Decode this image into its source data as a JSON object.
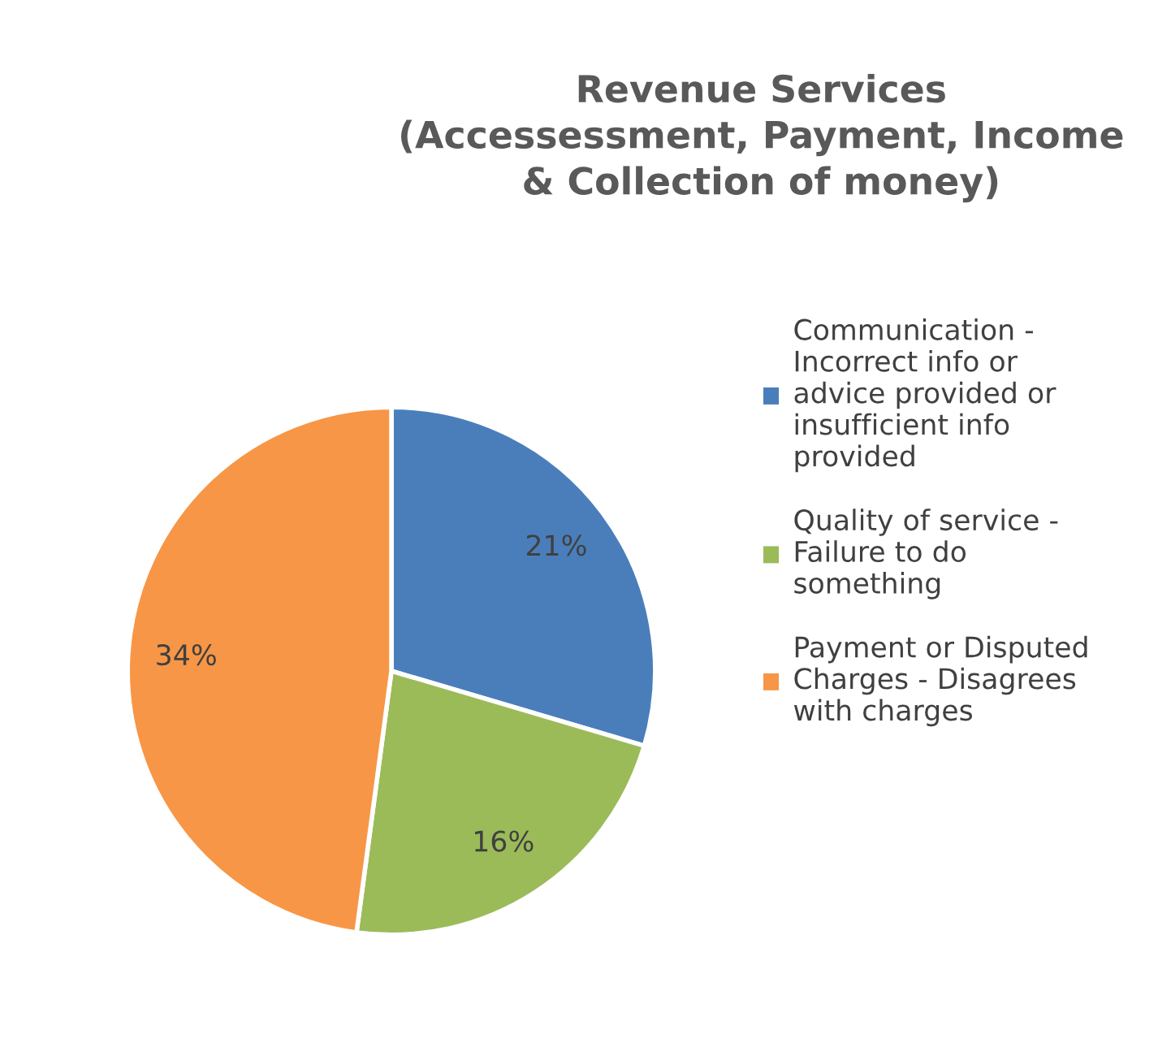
{
  "chart_data": {
    "type": "pie",
    "title": "Revenue Services\n(Accessessment, Payment, Income\n& Collection of money)",
    "categories": [
      "Communication -\nIncorrect info or\nadvice provided or\ninsufficient info\nprovided",
      "Quality of service -\nFailure to do\nsomething",
      "Payment or Disputed\nCharges - Disagrees\nwith charges"
    ],
    "values": [
      21,
      16,
      34
    ],
    "colors": [
      "#4a7ebb",
      "#9bbb59",
      "#f79646"
    ],
    "value_labels": [
      "21%",
      "16%",
      "34%"
    ],
    "legend": "right"
  }
}
